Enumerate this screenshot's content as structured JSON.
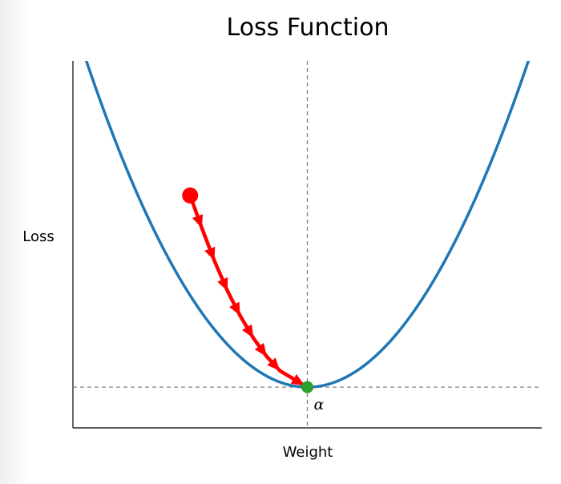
{
  "chart_data": {
    "type": "line",
    "title": "Loss Function",
    "xlabel": "Weight",
    "ylabel": "Loss",
    "grid": false,
    "xlim": [
      -3,
      3
    ],
    "ylim": [
      -1,
      8
    ],
    "series": [
      {
        "role": "loss-curve",
        "function": "x^2",
        "color": "#1f77b4"
      }
    ],
    "minimum": {
      "x": 0,
      "y": 0,
      "label": "α",
      "color": "#2ca02c"
    },
    "start_point": {
      "x": -1.5,
      "y": 4.7,
      "color": "#ff0000"
    },
    "descent_path": {
      "color": "#ff0000",
      "x": [
        -1.5,
        -1.35,
        -1.19,
        -1.02,
        -0.86,
        -0.69,
        -0.52,
        -0.35,
        0.0
      ],
      "y": [
        4.7,
        3.9,
        3.1,
        2.35,
        1.75,
        1.2,
        0.75,
        0.4,
        0.0
      ]
    },
    "reference_lines": [
      {
        "orientation": "vertical",
        "value": 0,
        "style": "dashed",
        "color": "#808080"
      },
      {
        "orientation": "horizontal",
        "value": 0,
        "style": "dashed",
        "color": "#808080"
      }
    ]
  }
}
